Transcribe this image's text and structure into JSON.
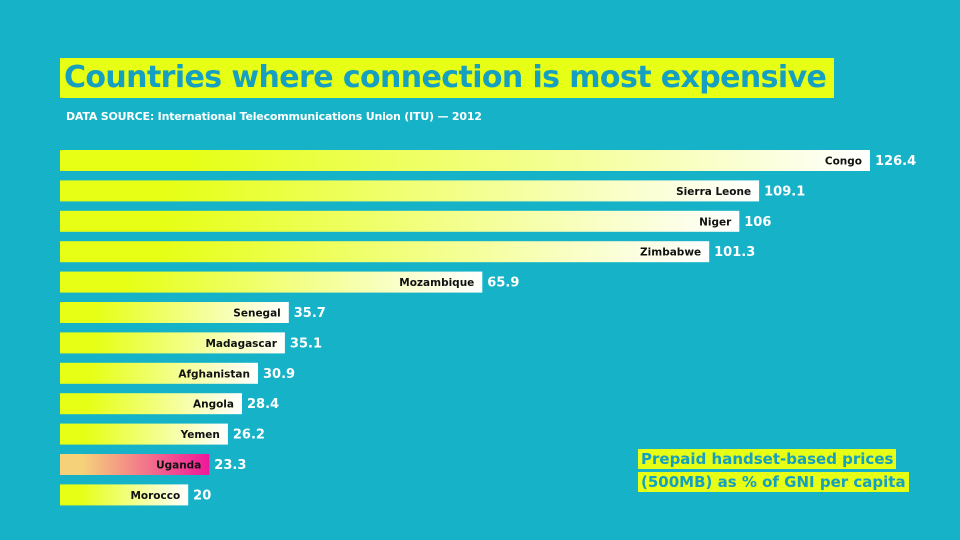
{
  "header": {
    "title": "Countries where connection is most expensive",
    "source": "DATA SOURCE: International Telecommunications Union (ITU) — 2012"
  },
  "note": {
    "line1": "Prepaid handset-based prices",
    "line2": "(500MB) as % of GNI per capita"
  },
  "colors": {
    "background": "#16b3c8",
    "bar_start": "#e6ff14",
    "bar_end": "#ffffff",
    "highlight_start": "#f5d27a",
    "highlight_end": "#f0179a",
    "accent_text": "#159fc0"
  },
  "chart_data": {
    "type": "bar",
    "orientation": "horizontal",
    "categories": [
      "Congo",
      "Sierra Leone",
      "Niger",
      "Zimbabwe",
      "Mozambique",
      "Senegal",
      "Madagascar",
      "Afghanistan",
      "Angola",
      "Yemen",
      "Uganda",
      "Morocco"
    ],
    "values": [
      126.4,
      109.1,
      106,
      101.3,
      65.9,
      35.7,
      35.1,
      30.9,
      28.4,
      26.2,
      23.3,
      20
    ],
    "value_labels": [
      "126.4",
      "109.1",
      "106",
      "101.3",
      "65.9",
      "35.7",
      "35.1",
      "30.9",
      "28.4",
      "26.2",
      "23.3",
      "20"
    ],
    "highlight": "Uganda",
    "xlim": [
      0,
      126.4
    ],
    "grid": false,
    "legend": "none"
  }
}
